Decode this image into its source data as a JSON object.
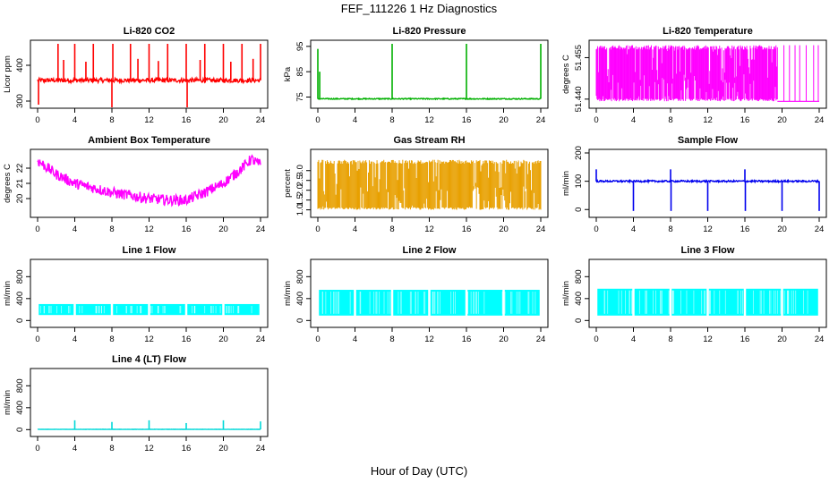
{
  "figure": {
    "title": "FEF_111226  1 Hz Diagnostics",
    "xlabel": "Hour of Day (UTC)"
  },
  "chart_data": [
    {
      "type": "line",
      "title": "Li-820 CO2",
      "ylabel": "Licor ppm",
      "color": "#ff0000",
      "xlim": [
        0,
        24
      ],
      "ylim": [
        290,
        460
      ],
      "xticks": [
        "0",
        "4",
        "8",
        "12",
        "16",
        "20",
        "24"
      ],
      "yticks": [
        "300",
        "400"
      ],
      "baseline": 358,
      "noise": 6,
      "spikes": [
        [
          0.1,
          290
        ],
        [
          2.2,
          460
        ],
        [
          4,
          460
        ],
        [
          6,
          460
        ],
        [
          8,
          275
        ],
        [
          8.1,
          460
        ],
        [
          10,
          460
        ],
        [
          12,
          460
        ],
        [
          14,
          460
        ],
        [
          16,
          460
        ],
        [
          16.1,
          280
        ],
        [
          18,
          460
        ],
        [
          20,
          460
        ],
        [
          22,
          460
        ],
        [
          24,
          460
        ]
      ],
      "minor_spikes": [
        [
          2.8,
          415
        ],
        [
          5.2,
          410
        ],
        [
          10.8,
          418
        ],
        [
          13,
          412
        ],
        [
          17.5,
          415
        ],
        [
          20.8,
          410
        ],
        [
          23.2,
          418
        ]
      ]
    },
    {
      "type": "line",
      "title": "Li-820 Pressure",
      "ylabel": "kPa",
      "color": "#00b000",
      "xlim": [
        0,
        24
      ],
      "ylim": [
        72,
        96
      ],
      "xticks": [
        "0",
        "4",
        "8",
        "12",
        "16",
        "20",
        "24"
      ],
      "yticks": [
        "75",
        "85",
        "95"
      ],
      "baseline": 74.3,
      "noise": 0.2,
      "spikes": [
        [
          0,
          94
        ],
        [
          0.2,
          85
        ],
        [
          8,
          96
        ],
        [
          16,
          96
        ],
        [
          24,
          96
        ]
      ],
      "minor_spikes": []
    },
    {
      "type": "band",
      "title": "Li-820 Temperature",
      "ylabel": "degrees C",
      "color": "#ff00ff",
      "xlim": [
        0,
        24
      ],
      "ylim": [
        51.438,
        51.46
      ],
      "xticks": [
        "0",
        "4",
        "8",
        "12",
        "16",
        "20",
        "24"
      ],
      "yticks": [
        "51.440",
        "51.455"
      ],
      "low": 51.4392,
      "high": 51.4595,
      "dense_until": 19.5,
      "sparse_lines": [
        20.2,
        20.8,
        21.4,
        21.9,
        22.6,
        23.4,
        23.9
      ]
    },
    {
      "type": "line",
      "title": "Ambient Box Temperature",
      "ylabel": "degrees C",
      "color": "#ff00ff",
      "xlim": [
        0,
        24
      ],
      "ylim": [
        19,
        23
      ],
      "xticks": [
        "0",
        "4",
        "8",
        "12",
        "16",
        "20",
        "24"
      ],
      "yticks": [
        "20",
        "21",
        "22"
      ],
      "curve": [
        [
          0,
          22.5
        ],
        [
          2,
          21.6
        ],
        [
          4,
          21.0
        ],
        [
          6,
          20.7
        ],
        [
          8,
          20.4
        ],
        [
          10,
          20.2
        ],
        [
          12,
          20.0
        ],
        [
          14,
          19.9
        ],
        [
          16,
          19.9
        ],
        [
          18,
          20.4
        ],
        [
          20,
          21.0
        ],
        [
          22,
          22.0
        ],
        [
          23,
          22.6
        ],
        [
          24,
          22.2
        ]
      ],
      "noise": 0.35
    },
    {
      "type": "band",
      "title": "Gas Stream RH",
      "ylabel": "percent",
      "color": "#e8a000",
      "xlim": [
        0,
        24
      ],
      "ylim": [
        0.8,
        3.9
      ],
      "xticks": [
        "0",
        "4",
        "8",
        "12",
        "16",
        "20",
        "24"
      ],
      "yticks": [
        "1.0",
        "1.5",
        "2.0",
        "2.5",
        "3.0"
      ],
      "low": 1.0,
      "high": 3.55,
      "dense_until": 24,
      "sparse_lines": []
    },
    {
      "type": "line",
      "title": "Sample Flow",
      "ylabel": "ml/min",
      "color": "#0000ee",
      "xlim": [
        0,
        24
      ],
      "ylim": [
        -15,
        200
      ],
      "xticks": [
        "0",
        "4",
        "8",
        "12",
        "16",
        "20",
        "24"
      ],
      "yticks": [
        "0",
        "100",
        "200"
      ],
      "baseline": 100,
      "noise": 3,
      "spikes": [
        [
          0,
          142
        ],
        [
          4,
          -5
        ],
        [
          8,
          142
        ],
        [
          8.05,
          -5
        ],
        [
          12,
          -5
        ],
        [
          16,
          142
        ],
        [
          16.05,
          -5
        ],
        [
          20,
          -5
        ],
        [
          24,
          -5
        ]
      ],
      "minor_spikes": []
    },
    {
      "type": "flowband",
      "title": "Line 1 Flow",
      "ylabel": "ml/min",
      "color": "#00ffff",
      "xlim": [
        0,
        24
      ],
      "ylim": [
        -60,
        1050
      ],
      "xticks": [
        "0",
        "4",
        "8",
        "12",
        "16",
        "20",
        "24"
      ],
      "yticks": [
        "0",
        "400",
        "800"
      ],
      "low": 100,
      "high": 300,
      "gaps": [
        4,
        8,
        12,
        16,
        20
      ]
    },
    {
      "type": "flowband",
      "title": "Line 2 Flow",
      "ylabel": "ml/min",
      "color": "#00ffff",
      "xlim": [
        0,
        24
      ],
      "ylim": [
        -60,
        1050
      ],
      "xticks": [
        "0",
        "4",
        "8",
        "12",
        "16",
        "20",
        "24"
      ],
      "yticks": [
        "0",
        "400",
        "800"
      ],
      "low": 90,
      "high": 560,
      "gaps": [
        4,
        8,
        12,
        16,
        20
      ]
    },
    {
      "type": "flowband",
      "title": "Line 3 Flow",
      "ylabel": "ml/min",
      "color": "#00ffff",
      "xlim": [
        0,
        24
      ],
      "ylim": [
        -60,
        1050
      ],
      "xticks": [
        "0",
        "4",
        "8",
        "12",
        "16",
        "20",
        "24"
      ],
      "yticks": [
        "0",
        "400",
        "800"
      ],
      "low": 90,
      "high": 580,
      "gaps": [
        4,
        8,
        12,
        16,
        20
      ]
    },
    {
      "type": "line",
      "title": "Line 4 (LT) Flow",
      "ylabel": "ml/min",
      "color": "#00d8d8",
      "xlim": [
        0,
        24
      ],
      "ylim": [
        -60,
        1050
      ],
      "xticks": [
        "0",
        "4",
        "8",
        "12",
        "16",
        "20",
        "24"
      ],
      "yticks": [
        "0",
        "400",
        "800"
      ],
      "baseline": 5,
      "noise": 2,
      "spikes": [
        [
          4,
          170
        ],
        [
          8,
          140
        ],
        [
          12,
          170
        ],
        [
          16,
          120
        ],
        [
          20,
          170
        ],
        [
          24,
          150
        ]
      ],
      "minor_spikes": []
    }
  ]
}
